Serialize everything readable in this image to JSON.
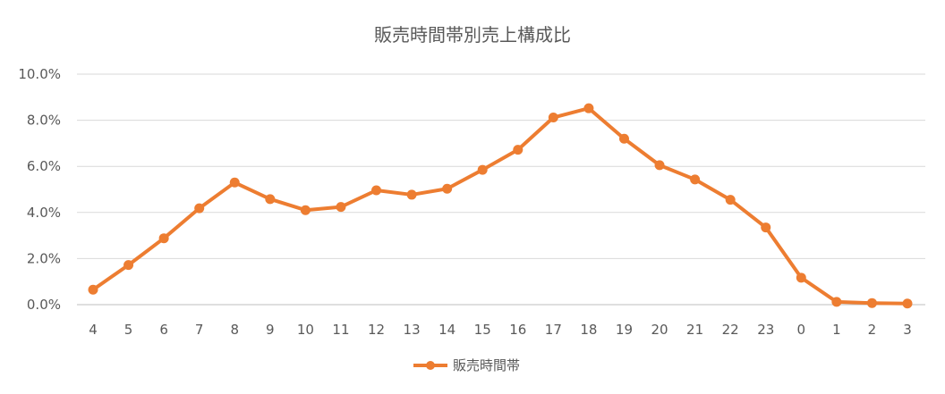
{
  "chart_data": {
    "type": "line",
    "title": "販売時間帯別売上構成比",
    "xlabel": "",
    "ylabel": "",
    "categories": [
      "4",
      "5",
      "6",
      "7",
      "8",
      "9",
      "10",
      "11",
      "12",
      "13",
      "14",
      "15",
      "16",
      "17",
      "18",
      "19",
      "20",
      "21",
      "22",
      "23",
      "0",
      "1",
      "2",
      "3"
    ],
    "series": [
      {
        "name": "販売時間帯",
        "color": "#ed7d31",
        "values": [
          0.65,
          1.72,
          2.88,
          4.18,
          5.3,
          4.58,
          4.1,
          4.24,
          4.96,
          4.77,
          5.03,
          5.85,
          6.72,
          8.12,
          8.52,
          7.2,
          6.05,
          5.43,
          4.55,
          3.35,
          1.17,
          0.12,
          0.07,
          0.05
        ]
      }
    ],
    "ylim": [
      0,
      10
    ],
    "y_ticks": [
      "0.0%",
      "2.0%",
      "4.0%",
      "6.0%",
      "8.0%",
      "10.0%"
    ],
    "y_tick_values": [
      0,
      2,
      4,
      6,
      8,
      10
    ],
    "grid": true,
    "legend_position": "bottom"
  }
}
